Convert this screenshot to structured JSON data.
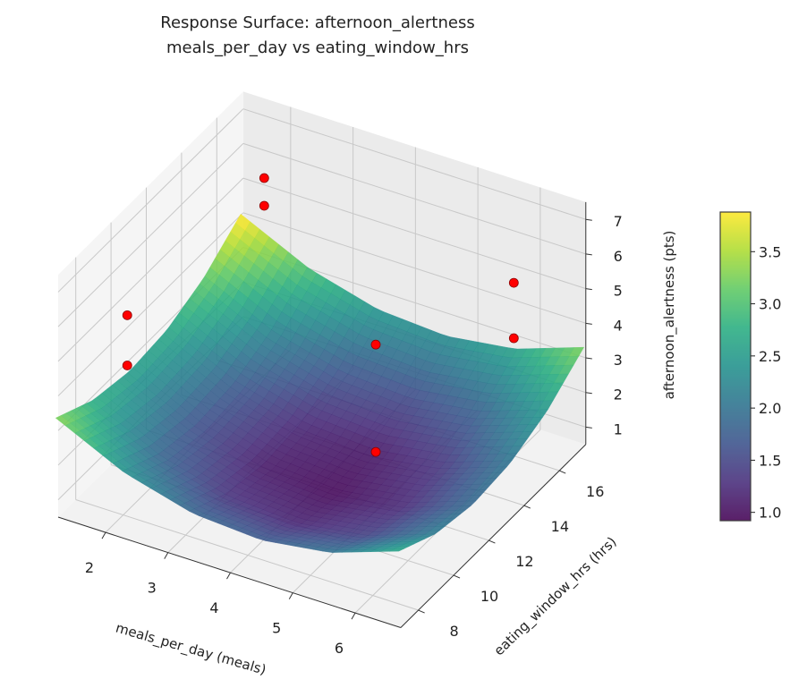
{
  "chart_data": {
    "type": "surface3d",
    "title": "Response Surface: afternoon_alertness",
    "subtitle": "meals_per_day vs eating_window_hrs",
    "xlabel": "meals_per_day (meals)",
    "ylabel": "eating_window_hrs (hrs)",
    "zlabel": "afternoon_alertness (pts)",
    "xlim": [
      1.24,
      6.73
    ],
    "ylim": [
      7,
      17.5
    ],
    "zlim": [
      0.5,
      7.5
    ],
    "xticks": [
      "2",
      "3",
      "4",
      "5",
      "6"
    ],
    "yticks": [
      "8",
      "10",
      "12",
      "14",
      "16"
    ],
    "zticks": [
      "1",
      "2",
      "3",
      "4",
      "5",
      "6",
      "7"
    ],
    "grid": true,
    "colormap": "viridis",
    "colorbar": {
      "label": "afternoon_alertness (pts)",
      "range": [
        0.92,
        3.88
      ],
      "ticks": [
        "1.0",
        "1.5",
        "2.0",
        "2.5",
        "3.0",
        "3.5"
      ]
    },
    "surface": {
      "x": [
        1.2,
        2.3,
        3.4,
        4.5,
        5.6,
        6.7
      ],
      "y": [
        7,
        9.1,
        11.2,
        13.3,
        15.4,
        17.5
      ],
      "z": [
        [
          3.34,
          2.4,
          1.86,
          1.73,
          2.01,
          2.69
        ],
        [
          2.79,
          1.85,
          1.31,
          1.18,
          1.46,
          2.14
        ],
        [
          2.58,
          1.63,
          1.09,
          0.96,
          1.24,
          1.93
        ],
        [
          2.7,
          1.75,
          1.21,
          1.08,
          1.36,
          2.05
        ],
        [
          3.15,
          2.2,
          1.67,
          1.54,
          1.81,
          2.5
        ],
        [
          3.94,
          3.0,
          2.46,
          2.33,
          2.6,
          3.29
        ]
      ]
    },
    "scatter": {
      "color": "#ff0000",
      "points": [
        {
          "x": 2.0,
          "y": 16.0,
          "z": 6.2
        },
        {
          "x": 2.0,
          "y": 16.0,
          "z": 5.4
        },
        {
          "x": 1.5,
          "y": 10.0,
          "z": 4.97
        },
        {
          "x": 1.5,
          "y": 10.0,
          "z": 3.52
        },
        {
          "x": 5.2,
          "y": 11.0,
          "z": 5.77
        },
        {
          "x": 5.2,
          "y": 11.0,
          "z": 2.67
        },
        {
          "x": 6.0,
          "y": 16.0,
          "z": 5.5
        },
        {
          "x": 6.0,
          "y": 16.0,
          "z": 3.9
        }
      ]
    }
  }
}
